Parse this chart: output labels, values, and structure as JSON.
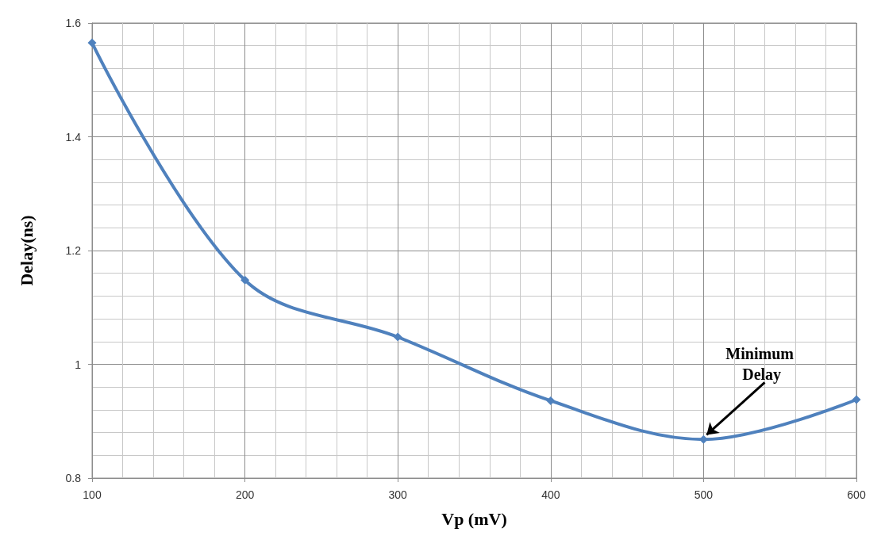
{
  "chart_data": {
    "type": "line",
    "xlabel": "Vp (mV)",
    "ylabel": "Delay(ns)",
    "x": [
      100,
      200,
      300,
      400,
      500,
      600
    ],
    "series": [
      {
        "color": "#4f81bd",
        "values": [
          1.565,
          1.148,
          1.048,
          0.936,
          0.868,
          0.938
        ]
      }
    ],
    "xlim": [
      100,
      600
    ],
    "xticks": [
      100,
      200,
      300,
      400,
      500,
      600
    ],
    "ylim": [
      0.8,
      1.6
    ],
    "yticks": [
      0.8,
      1,
      1.2,
      1.4,
      1.6
    ],
    "grid": true,
    "marker": "diamond",
    "line_style": "solid",
    "annotations": [
      {
        "text": "Minimum Delay",
        "x": 500,
        "y": 0.868
      }
    ]
  }
}
